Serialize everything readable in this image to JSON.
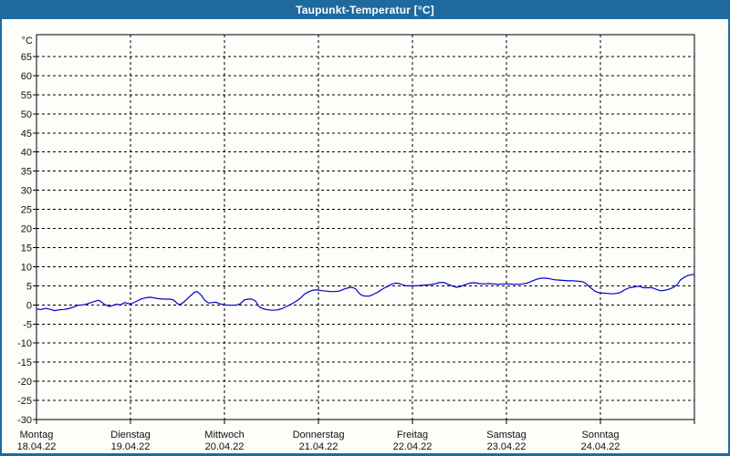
{
  "window": {
    "title": "Taupunkt-Temperatur [°C]"
  },
  "colors": {
    "titlebar": "#1e6a9e",
    "frame": "#1e6a9e",
    "title_text": "#ffffff",
    "plot_background": "#fdfdfa",
    "plot_border": "#000000",
    "grid": "#000000",
    "axis_text": "#101010",
    "line": "#0000cc"
  },
  "chart_data": {
    "type": "line",
    "title": "Taupunkt-Temperatur [°C]",
    "ylabel": "°C",
    "xlabel": "",
    "ylim": [
      -30,
      70.8
    ],
    "xlim_days": [
      0,
      7
    ],
    "grid": "dashed, horizontal every 5°C, vertical every day",
    "legend": "none",
    "yticks": [
      65,
      60,
      55,
      50,
      45,
      40,
      35,
      30,
      25,
      20,
      15,
      10,
      5,
      0,
      -5,
      -10,
      -15,
      -20,
      -25,
      -30
    ],
    "x_days": [
      {
        "name": "Montag",
        "date": "18.04.22"
      },
      {
        "name": "Dienstag",
        "date": "19.04.22"
      },
      {
        "name": "Mittwoch",
        "date": "20.04.22"
      },
      {
        "name": "Donnerstag",
        "date": "21.04.22"
      },
      {
        "name": "Freitag",
        "date": "22.04.22"
      },
      {
        "name": "Samstag",
        "date": "23.04.22"
      },
      {
        "name": "Sonntag",
        "date": "24.04.22"
      }
    ],
    "series": [
      {
        "name": "Taupunkt-Temperatur",
        "color": "#0000cc",
        "unit": "°C",
        "points_day_value": [
          [
            0.0,
            -1.1
          ],
          [
            0.05,
            -1.2
          ],
          [
            0.1,
            -0.9
          ],
          [
            0.15,
            -1.2
          ],
          [
            0.19,
            -1.5
          ],
          [
            0.24,
            -1.3
          ],
          [
            0.29,
            -1.2
          ],
          [
            0.34,
            -1.0
          ],
          [
            0.39,
            -0.6
          ],
          [
            0.44,
            -0.1
          ],
          [
            0.49,
            0.0
          ],
          [
            0.53,
            0.2
          ],
          [
            0.58,
            0.6
          ],
          [
            0.63,
            1.0
          ],
          [
            0.66,
            1.2
          ],
          [
            0.7,
            0.6
          ],
          [
            0.73,
            0.0
          ],
          [
            0.78,
            -0.4
          ],
          [
            0.83,
            0.0
          ],
          [
            0.85,
            0.2
          ],
          [
            0.89,
            0.0
          ],
          [
            0.94,
            0.6
          ],
          [
            1.0,
            0.2
          ],
          [
            1.05,
            0.8
          ],
          [
            1.12,
            1.6
          ],
          [
            1.17,
            1.9
          ],
          [
            1.21,
            2.0
          ],
          [
            1.26,
            1.8
          ],
          [
            1.31,
            1.6
          ],
          [
            1.37,
            1.5
          ],
          [
            1.42,
            1.5
          ],
          [
            1.46,
            1.3
          ],
          [
            1.5,
            0.3
          ],
          [
            1.53,
            0.1
          ],
          [
            1.58,
            1.0
          ],
          [
            1.63,
            2.2
          ],
          [
            1.68,
            3.3
          ],
          [
            1.71,
            3.5
          ],
          [
            1.75,
            2.6
          ],
          [
            1.79,
            1.2
          ],
          [
            1.83,
            0.5
          ],
          [
            1.87,
            0.6
          ],
          [
            1.91,
            0.7
          ],
          [
            1.95,
            0.3
          ],
          [
            2.0,
            0.0
          ],
          [
            2.06,
            -0.1
          ],
          [
            2.12,
            -0.1
          ],
          [
            2.17,
            0.3
          ],
          [
            2.21,
            1.3
          ],
          [
            2.25,
            1.5
          ],
          [
            2.29,
            1.5
          ],
          [
            2.33,
            1.0
          ],
          [
            2.37,
            -0.5
          ],
          [
            2.42,
            -1.1
          ],
          [
            2.47,
            -1.3
          ],
          [
            2.51,
            -1.4
          ],
          [
            2.56,
            -1.3
          ],
          [
            2.61,
            -1.0
          ],
          [
            2.66,
            -0.4
          ],
          [
            2.71,
            0.2
          ],
          [
            2.76,
            0.9
          ],
          [
            2.81,
            1.8
          ],
          [
            2.85,
            2.8
          ],
          [
            2.9,
            3.5
          ],
          [
            2.95,
            3.9
          ],
          [
            3.0,
            3.9
          ],
          [
            3.04,
            3.7
          ],
          [
            3.08,
            3.6
          ],
          [
            3.13,
            3.5
          ],
          [
            3.17,
            3.5
          ],
          [
            3.22,
            3.6
          ],
          [
            3.27,
            4.1
          ],
          [
            3.32,
            4.5
          ],
          [
            3.36,
            4.6
          ],
          [
            3.4,
            4.1
          ],
          [
            3.43,
            3.1
          ],
          [
            3.46,
            2.5
          ],
          [
            3.5,
            2.3
          ],
          [
            3.54,
            2.3
          ],
          [
            3.58,
            2.7
          ],
          [
            3.63,
            3.3
          ],
          [
            3.67,
            4.0
          ],
          [
            3.7,
            4.4
          ],
          [
            3.74,
            4.9
          ],
          [
            3.78,
            5.4
          ],
          [
            3.82,
            5.7
          ],
          [
            3.86,
            5.6
          ],
          [
            3.9,
            5.2
          ],
          [
            3.93,
            5.0
          ],
          [
            3.97,
            5.0
          ],
          [
            4.0,
            5.0
          ],
          [
            4.05,
            5.0
          ],
          [
            4.1,
            5.1
          ],
          [
            4.15,
            5.2
          ],
          [
            4.19,
            5.3
          ],
          [
            4.24,
            5.5
          ],
          [
            4.28,
            5.8
          ],
          [
            4.33,
            5.9
          ],
          [
            4.37,
            5.5
          ],
          [
            4.42,
            5.0
          ],
          [
            4.47,
            4.6
          ],
          [
            4.51,
            4.8
          ],
          [
            4.56,
            5.3
          ],
          [
            4.61,
            5.7
          ],
          [
            4.66,
            5.8
          ],
          [
            4.71,
            5.6
          ],
          [
            4.76,
            5.5
          ],
          [
            4.81,
            5.6
          ],
          [
            4.86,
            5.5
          ],
          [
            4.92,
            5.4
          ],
          [
            4.97,
            5.5
          ],
          [
            5.03,
            5.5
          ],
          [
            5.08,
            5.4
          ],
          [
            5.13,
            5.4
          ],
          [
            5.17,
            5.5
          ],
          [
            5.22,
            5.7
          ],
          [
            5.27,
            6.2
          ],
          [
            5.32,
            6.7
          ],
          [
            5.37,
            7.0
          ],
          [
            5.42,
            7.0
          ],
          [
            5.47,
            6.8
          ],
          [
            5.51,
            6.6
          ],
          [
            5.56,
            6.5
          ],
          [
            5.61,
            6.4
          ],
          [
            5.66,
            6.3
          ],
          [
            5.71,
            6.3
          ],
          [
            5.76,
            6.2
          ],
          [
            5.81,
            6.1
          ],
          [
            5.85,
            5.5
          ],
          [
            5.9,
            4.4
          ],
          [
            5.94,
            3.6
          ],
          [
            5.98,
            3.2
          ],
          [
            6.02,
            3.1
          ],
          [
            6.07,
            3.0
          ],
          [
            6.12,
            2.9
          ],
          [
            6.17,
            3.0
          ],
          [
            6.21,
            3.2
          ],
          [
            6.26,
            4.0
          ],
          [
            6.31,
            4.5
          ],
          [
            6.36,
            4.7
          ],
          [
            6.41,
            4.9
          ],
          [
            6.46,
            4.5
          ],
          [
            6.5,
            4.5
          ],
          [
            6.55,
            4.5
          ],
          [
            6.6,
            4.0
          ],
          [
            6.64,
            3.7
          ],
          [
            6.68,
            3.8
          ],
          [
            6.73,
            4.1
          ],
          [
            6.78,
            4.6
          ],
          [
            6.82,
            5.4
          ],
          [
            6.85,
            6.5
          ],
          [
            6.89,
            7.2
          ],
          [
            6.93,
            7.7
          ],
          [
            6.97,
            7.9
          ],
          [
            7.0,
            8.0
          ]
        ]
      }
    ]
  }
}
